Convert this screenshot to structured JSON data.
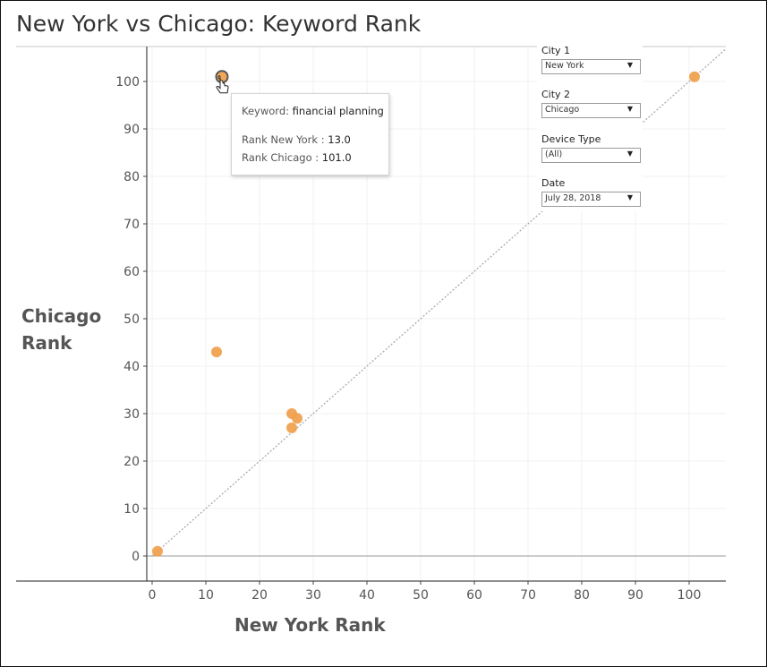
{
  "title": "New York vs Chicago: Keyword Rank",
  "chart_data": {
    "type": "scatter",
    "title": "New York vs Chicago: Keyword Rank",
    "xlabel": "New York Rank",
    "ylabel": "Chicago Rank",
    "xlim": [
      0,
      105
    ],
    "ylim": [
      -3,
      107
    ],
    "x_ticks": [
      0,
      10,
      20,
      30,
      40,
      50,
      60,
      70,
      80,
      90,
      100
    ],
    "y_ticks": [
      0,
      10,
      20,
      30,
      40,
      50,
      60,
      70,
      80,
      90,
      100
    ],
    "reference_line": "y = x (dotted)",
    "grid": true,
    "marker_color": "#f0a04b",
    "points": [
      {
        "x": 1,
        "y": 1
      },
      {
        "x": 12,
        "y": 43
      },
      {
        "x": 26,
        "y": 30
      },
      {
        "x": 27,
        "y": 29
      },
      {
        "x": 26,
        "y": 27
      },
      {
        "x": 101,
        "y": 101
      },
      {
        "x": 13,
        "y": 101,
        "highlighted": true
      }
    ]
  },
  "tooltip": {
    "keyword_label": "Keyword:",
    "keyword_value": "financial planning",
    "rank_ny_label": "Rank  New York  :",
    "rank_ny_value": "13.0",
    "rank_chi_label": "Rank Chicago :",
    "rank_chi_value": "101.0"
  },
  "filters": [
    {
      "label": "City 1",
      "value": "New York"
    },
    {
      "label": "City 2",
      "value": "Chicago"
    },
    {
      "label": "Device Type",
      "value": "(All)"
    },
    {
      "label": "Date",
      "value": "July 28, 2018"
    }
  ],
  "ylabel_lines": [
    "Chicago",
    "Rank"
  ]
}
